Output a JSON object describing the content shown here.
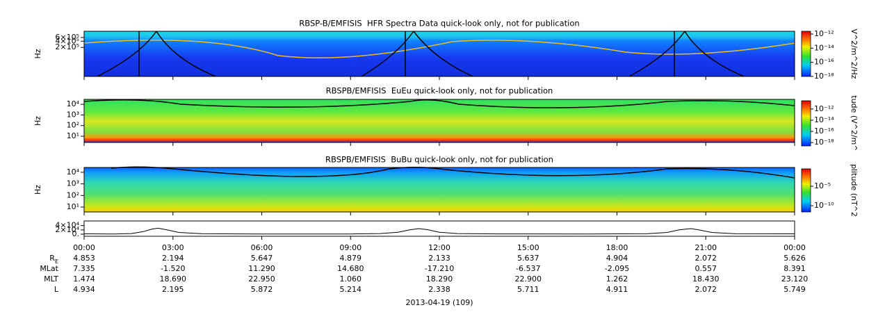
{
  "chart_data": [
    {
      "type": "heatmap",
      "title": "RBSP-B/EMFISIS  HFR Spectra Data quick-look only, not for publication",
      "ylabel": "Hz",
      "log_y": true,
      "ylim": [
        8000,
        1200000
      ],
      "yticks": [
        {
          "value": 200000,
          "label": "2×10⁵"
        },
        {
          "value": 400000,
          "label": "4×10⁵"
        },
        {
          "value": 600000,
          "label": "6×10⁵"
        }
      ],
      "colorbar": {
        "label": "V^2/m^2/Hz",
        "zlim": [
          1e-18,
          2.5e-12
        ],
        "ticks": [
          {
            "value": 1e-12,
            "label": "10⁻¹²"
          },
          {
            "value": 1e-14,
            "label": "10⁻¹⁴"
          },
          {
            "value": 1e-16,
            "label": "10⁻¹⁶"
          },
          {
            "value": 1e-18,
            "label": "10⁻¹⁸"
          }
        ]
      }
    },
    {
      "type": "heatmap",
      "title": "RBSPB/EMFISIS  EuEu quick-look only, not for publication",
      "ylabel": "Hz",
      "log_y": true,
      "ylim": [
        2.6,
        29000
      ],
      "yticks": [
        {
          "value": 10,
          "label": "10¹"
        },
        {
          "value": 100,
          "label": "10²"
        },
        {
          "value": 1000,
          "label": "10³"
        },
        {
          "value": 10000,
          "label": "10⁴"
        }
      ],
      "colorbar": {
        "label": "tude (V^2/m^",
        "zlim": [
          2.5e-19,
          3e-11
        ],
        "ticks": [
          {
            "value": 1e-12,
            "label": "10⁻¹²"
          },
          {
            "value": 1e-14,
            "label": "10⁻¹⁴"
          },
          {
            "value": 1e-16,
            "label": "10⁻¹⁶"
          },
          {
            "value": 1e-18,
            "label": "10⁻¹⁸"
          }
        ]
      }
    },
    {
      "type": "heatmap",
      "title": "RBSPB/EMFISIS  BuBu quick-look only, not for publication",
      "ylabel": "Hz",
      "log_y": true,
      "ylim": [
        3.8,
        26000
      ],
      "yticks": [
        {
          "value": 10,
          "label": "10¹"
        },
        {
          "value": 100,
          "label": "10²"
        },
        {
          "value": 1000,
          "label": "10³"
        },
        {
          "value": 10000,
          "label": "10⁴"
        }
      ],
      "colorbar": {
        "label": "plitude (nT^2",
        "zlim": [
          2.5e-12,
          0.3
        ],
        "ticks": [
          {
            "value": 1e-05,
            "label": "10⁻⁵"
          },
          {
            "value": 1e-10,
            "label": "10⁻¹⁰"
          }
        ]
      }
    },
    {
      "type": "line",
      "color": "#000000",
      "log_y": false,
      "ylim": [
        -9750,
        61700
      ],
      "yticks": [
        {
          "value": 0,
          "label": "0."
        },
        {
          "value": 20000,
          "label": "2×10⁴"
        },
        {
          "value": 40000,
          "label": "4×10⁴"
        }
      ],
      "x": [
        0,
        1,
        1.6,
        2,
        2.3,
        2.5,
        2.8,
        3.2,
        4,
        6,
        9,
        10,
        10.6,
        11,
        11.3,
        11.6,
        12,
        12.6,
        14,
        17,
        19,
        19.7,
        20.1,
        20.5,
        20.8,
        21.2,
        22,
        24
      ],
      "values": [
        1500,
        1000,
        3000,
        12000,
        24000,
        28000,
        20000,
        8000,
        2000,
        800,
        1000,
        3000,
        9000,
        20000,
        26000,
        21000,
        9000,
        3000,
        1200,
        900,
        2000,
        8000,
        20000,
        26000,
        19000,
        8000,
        2000,
        1500
      ]
    }
  ],
  "time_axis": {
    "xlim": [
      0,
      24
    ],
    "xlabel": "2013-04-19 (109)",
    "xticks": [
      {
        "value": 0,
        "label": "00:00"
      },
      {
        "value": 3,
        "label": "03:00"
      },
      {
        "value": 6,
        "label": "06:00"
      },
      {
        "value": 9,
        "label": "09:00"
      },
      {
        "value": 12,
        "label": "12:00"
      },
      {
        "value": 15,
        "label": "15:00"
      },
      {
        "value": 18,
        "label": "18:00"
      },
      {
        "value": 21,
        "label": "21:00"
      },
      {
        "value": 24,
        "label": "00:00"
      }
    ]
  },
  "ephemeris": [
    {
      "label": "R",
      "subscript": "E",
      "values": [
        "4.853",
        "2.194",
        "5.647",
        "4.879",
        "2.133",
        "5.637",
        "4.904",
        "2.072",
        "5.626"
      ]
    },
    {
      "label": "MLat",
      "values": [
        "7.335",
        "-1.520",
        "11.290",
        "14.680",
        "-17.210",
        "-6.537",
        "-2.095",
        "0.557",
        "8.391"
      ]
    },
    {
      "label": "MLT",
      "values": [
        "1.474",
        "18.690",
        "22.950",
        "1.060",
        "18.290",
        "22.900",
        "1.262",
        "18.430",
        "23.120"
      ]
    },
    {
      "label": "L",
      "values": [
        "4.934",
        "2.195",
        "5.872",
        "5.214",
        "2.338",
        "5.711",
        "4.911",
        "2.072",
        "5.749"
      ]
    }
  ]
}
